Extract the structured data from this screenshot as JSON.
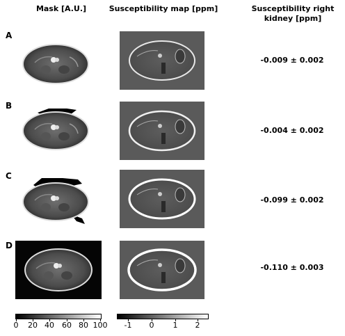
{
  "headers": {
    "mask": "Mask [A.U.]",
    "susceptibility": "Susceptibility map [ppm]",
    "kidney": "Susceptibility right kidney [ppm]"
  },
  "rows": [
    {
      "label": "A",
      "value": "-0.009 ± 0.002"
    },
    {
      "label": "B",
      "value": "-0.004 ± 0.002"
    },
    {
      "label": "C",
      "value": "-0.099 ± 0.002"
    },
    {
      "label": "D",
      "value": "-0.110 ± 0.003"
    }
  ],
  "colorbars": {
    "mask": {
      "ticks": [
        "0",
        "20",
        "40",
        "60",
        "80",
        "100"
      ],
      "from": "#000000",
      "to": "#ffffff"
    },
    "susceptibility": {
      "ticks": [
        "-1",
        "0",
        "1",
        "2"
      ],
      "from": "#000000",
      "to": "#ffffff"
    }
  }
}
